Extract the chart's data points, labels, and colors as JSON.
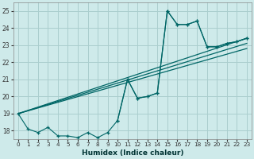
{
  "xlabel": "Humidex (Indice chaleur)",
  "bg_color": "#ceeaea",
  "grid_color": "#aacece",
  "line_color": "#006666",
  "xlim": [
    -0.5,
    23.5
  ],
  "ylim": [
    17.5,
    25.5
  ],
  "yticks": [
    18,
    19,
    20,
    21,
    22,
    23,
    24,
    25
  ],
  "xticks": [
    0,
    1,
    2,
    3,
    4,
    5,
    6,
    7,
    8,
    9,
    10,
    11,
    12,
    13,
    14,
    15,
    16,
    17,
    18,
    19,
    20,
    21,
    22,
    23
  ],
  "series_noisy": {
    "x": [
      0,
      1,
      2,
      3,
      4,
      5,
      6,
      7,
      8,
      9,
      10,
      11,
      12,
      13,
      14,
      15,
      16,
      17,
      18,
      19,
      20,
      21,
      22,
      23
    ],
    "y": [
      19.0,
      18.1,
      17.9,
      18.2,
      17.7,
      17.7,
      17.6,
      17.9,
      17.6,
      17.9,
      18.6,
      21.0,
      19.9,
      20.0,
      20.2,
      25.0,
      24.2,
      24.2,
      24.4,
      22.9,
      22.9,
      23.1,
      23.2,
      23.4
    ]
  },
  "series_peaked": {
    "x": [
      10,
      11,
      12,
      13,
      14,
      15,
      16,
      17,
      18,
      19,
      20,
      21,
      22,
      23
    ],
    "y": [
      18.6,
      21.0,
      19.9,
      20.0,
      20.2,
      25.0,
      24.2,
      24.2,
      24.4,
      22.9,
      22.9,
      23.1,
      23.2,
      23.4
    ]
  },
  "linear_lines": [
    {
      "x": [
        0,
        23
      ],
      "y": [
        19.0,
        23.4
      ]
    },
    {
      "x": [
        0,
        23
      ],
      "y": [
        19.0,
        23.1
      ]
    },
    {
      "x": [
        0,
        23
      ],
      "y": [
        19.0,
        22.8
      ]
    }
  ]
}
